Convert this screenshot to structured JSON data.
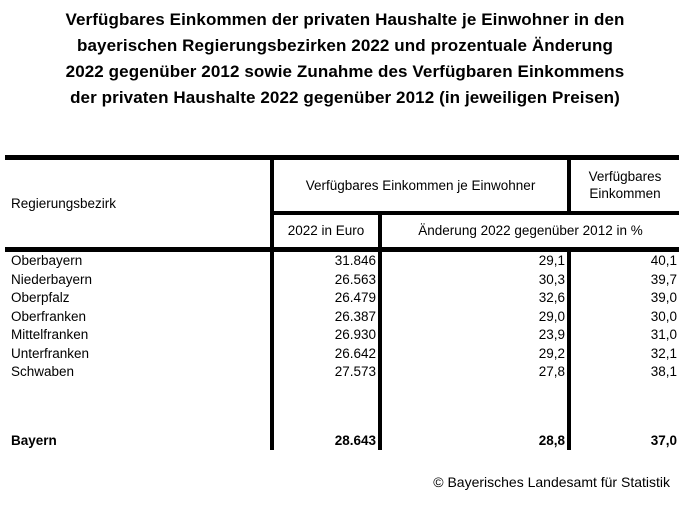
{
  "chart_data": {
    "type": "table",
    "title": "Verfügbares Einkommen der privaten Haushalte je Einwohner in den bayerischen Regierungsbezirken 2022 und prozentuale Änderung 2022 gegenüber 2012 sowie Zunahme des Verfügbaren Einkommens der privaten Haushalte 2022 gegenüber 2012 (in jeweiligen Preisen)",
    "title_lines": [
      "Verfügbares Einkommen der privaten Haushalte je Einwohner in den",
      "bayerischen Regierungsbezirken 2022 und prozentuale Änderung",
      "2022 gegenüber 2012 sowie Zunahme des Verfügbaren Einkommens",
      "der privaten Haushalte 2022 gegenüber 2012 (in jeweiligen Preisen)"
    ],
    "header": {
      "region": "Regierungsbezirk",
      "income_per_capita_group": "Verfügbares Einkommen je Einwohner",
      "income_total_group": "Verfügbares Einkommen",
      "sub_2022_in_euro": "2022 in Euro",
      "sub_change_percent": "Änderung 2022 gegenüber 2012 in %"
    },
    "rows": [
      {
        "region": "Oberbayern",
        "euro_2022": "31.846",
        "change_per_capita_pct": "29,1",
        "change_total_pct": "40,1"
      },
      {
        "region": "Niederbayern",
        "euro_2022": "26.563",
        "change_per_capita_pct": "30,3",
        "change_total_pct": "39,7"
      },
      {
        "region": "Oberpfalz",
        "euro_2022": "26.479",
        "change_per_capita_pct": "32,6",
        "change_total_pct": "39,0"
      },
      {
        "region": "Oberfranken",
        "euro_2022": "26.387",
        "change_per_capita_pct": "29,0",
        "change_total_pct": "30,0"
      },
      {
        "region": "Mittelfranken",
        "euro_2022": "26.930",
        "change_per_capita_pct": "23,9",
        "change_total_pct": "31,0"
      },
      {
        "region": "Unterfranken",
        "euro_2022": "26.642",
        "change_per_capita_pct": "29,2",
        "change_total_pct": "32,1"
      },
      {
        "region": "Schwaben",
        "euro_2022": "27.573",
        "change_per_capita_pct": "27,8",
        "change_total_pct": "38,1"
      }
    ],
    "total_row": {
      "region": "Bayern",
      "euro_2022": "28.643",
      "change_per_capita_pct": "28,8",
      "change_total_pct": "37,0"
    },
    "source": "© Bayerisches Landesamt für Statistik",
    "colors": {
      "text": "#000000",
      "background": "#ffffff",
      "border": "#000000"
    }
  }
}
